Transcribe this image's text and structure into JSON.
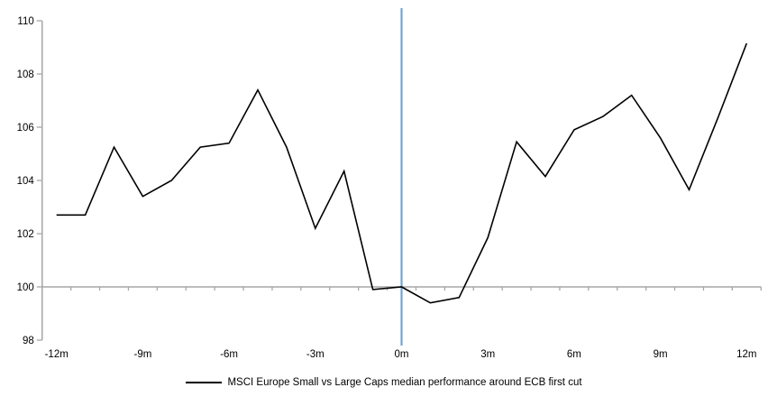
{
  "legend": {
    "label": "MSCI Europe Small vs Large Caps median performance around ECB first cut"
  },
  "colors": {
    "series_line": "#000000",
    "event_line": "#76A3D0",
    "axis": "#A6A6A6",
    "label_text": "#000000",
    "background": "#FFFFFF"
  },
  "chart_data": {
    "type": "line",
    "title": "",
    "xlabel": "",
    "ylabel": "",
    "x": [
      -12,
      -11,
      -10,
      -9,
      -8,
      -7,
      -6,
      -5,
      -4,
      -3,
      -2,
      -1,
      0,
      1,
      2,
      3,
      4,
      5,
      6,
      7,
      8,
      9,
      10,
      11,
      12
    ],
    "series": [
      {
        "name": "MSCI Europe Small vs Large Caps median performance around ECB first cut",
        "values": [
          102.7,
          102.7,
          105.25,
          103.4,
          104.0,
          105.25,
          105.4,
          107.4,
          105.25,
          102.2,
          104.35,
          99.9,
          100.0,
          99.4,
          99.6,
          101.85,
          105.45,
          104.15,
          105.9,
          106.4,
          107.2,
          105.6,
          103.65,
          106.35,
          109.15
        ]
      }
    ],
    "x_tick_values": [
      -12,
      -9,
      -6,
      -3,
      0,
      3,
      6,
      9,
      12
    ],
    "x_tick_labels": [
      "-12m",
      "-9m",
      "-6m",
      "-3m",
      "0m",
      "3m",
      "6m",
      "9m",
      "12m"
    ],
    "y_ticks": [
      98,
      100,
      102,
      104,
      106,
      108,
      110
    ],
    "ylim": [
      98,
      110
    ],
    "xlim": [
      -12.5,
      12.5
    ],
    "category_axis_crosses_at": 100,
    "event_line_x": 0,
    "grid": false,
    "legend_position": "bottom-center"
  }
}
